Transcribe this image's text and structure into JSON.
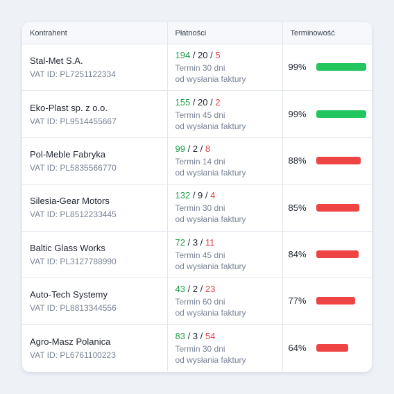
{
  "table": {
    "headers": [
      "Kontrahent",
      "Płatności",
      "Terminowość"
    ],
    "rows": [
      {
        "name": "Stal-Met S.A.",
        "vat": "VAT ID: PL7251122334",
        "on_time": 194,
        "late": 20,
        "overdue": 5,
        "term": "Termin 30 dni",
        "term_note": "od wysłania faktury",
        "terminowosc": {
          "value": 99,
          "label": "99%"
        },
        "bar_color": "#22c55e"
      },
      {
        "name": "Eko-Plast sp. z o.o.",
        "vat": "VAT ID: PL9514455667",
        "on_time": 155,
        "late": 20,
        "overdue": 2,
        "term": "Termin 45 dni",
        "term_note": "od wysłania faktury",
        "terminowosc": {
          "value": 99,
          "label": "99%"
        },
        "bar_color": "#22c55e"
      },
      {
        "name": "Pol-Meble Fabryka",
        "vat": "VAT ID: PL5835566770",
        "on_time": 99,
        "late": 2,
        "overdue": 8,
        "term": "Termin 14 dni",
        "term_note": "od wysłania faktury",
        "terminowosc": {
          "value": 88,
          "label": "88%"
        },
        "bar_color": "#ef4444"
      },
      {
        "name": "Silesia-Gear Motors",
        "vat": "VAT ID: PL8512233445",
        "on_time": 132,
        "late": 9,
        "overdue": 4,
        "term": "Termin 30 dni",
        "term_note": "od wysłania faktury",
        "terminowosc": {
          "value": 85,
          "label": "85%"
        },
        "bar_color": "#ef4444"
      },
      {
        "name": "Baltic Glass Works",
        "vat": "VAT ID: PL3127788990",
        "on_time": 72,
        "late": 3,
        "overdue": 11,
        "term": "Termin 45 dni",
        "term_note": "od wysłania faktury",
        "terminowosc": {
          "value": 84,
          "label": "84%"
        },
        "bar_color": "#ef4444"
      },
      {
        "name": "Auto-Tech Systemy",
        "vat": "VAT ID: PL8813344556",
        "on_time": 43,
        "late": 2,
        "overdue": 23,
        "term": "Termin 60 dni",
        "term_note": "od wysłania faktury",
        "terminowosc": {
          "value": 77,
          "label": "77%"
        },
        "bar_color": "#ef4444"
      },
      {
        "name": "Agro-Masz Polanica",
        "vat": "VAT ID: PL6761100223",
        "on_time": 83,
        "late": 3,
        "overdue": 54,
        "term": "Termin 30 dni",
        "term_note": "od wysłania faktury",
        "terminowosc": {
          "value": 64,
          "label": "64%"
        },
        "bar_color": "#ef4444"
      }
    ]
  }
}
